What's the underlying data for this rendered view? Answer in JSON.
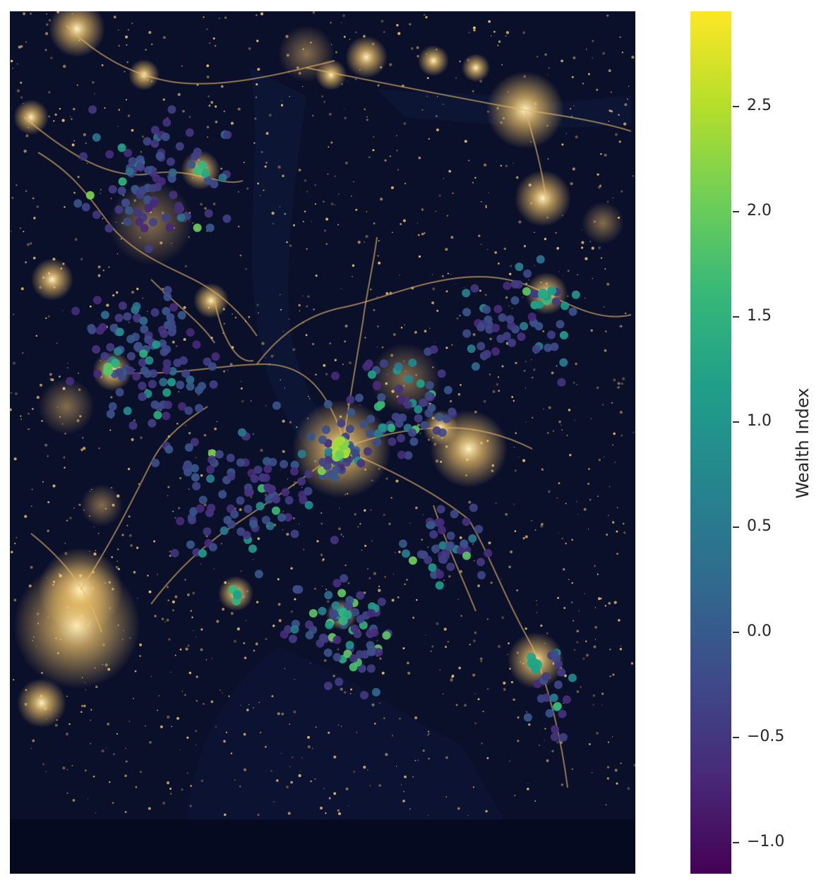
{
  "colorbar": {
    "label": "Wealth Index",
    "range": [
      -1.15,
      2.95
    ],
    "colormap": "viridis",
    "colors": [
      "#440154",
      "#482878",
      "#3e4989",
      "#31688e",
      "#26828e",
      "#1f9e89",
      "#35b779",
      "#6ece58",
      "#b5de2b",
      "#fde725"
    ],
    "ticks": [
      {
        "value": 2.5,
        "label": "2.5"
      },
      {
        "value": 2.0,
        "label": "2.0"
      },
      {
        "value": 1.5,
        "label": "1.5"
      },
      {
        "value": 1.0,
        "label": "1.0"
      },
      {
        "value": 0.5,
        "label": "0.5"
      },
      {
        "value": 0.0,
        "label": "0.0"
      },
      {
        "value": -0.5,
        "label": "−0.5"
      },
      {
        "value": -1.0,
        "label": "−1.0"
      }
    ]
  },
  "map": {
    "background": "night-lights satellite image",
    "background_color": "#0a0f2a",
    "light_color": "#ffd27a"
  }
}
